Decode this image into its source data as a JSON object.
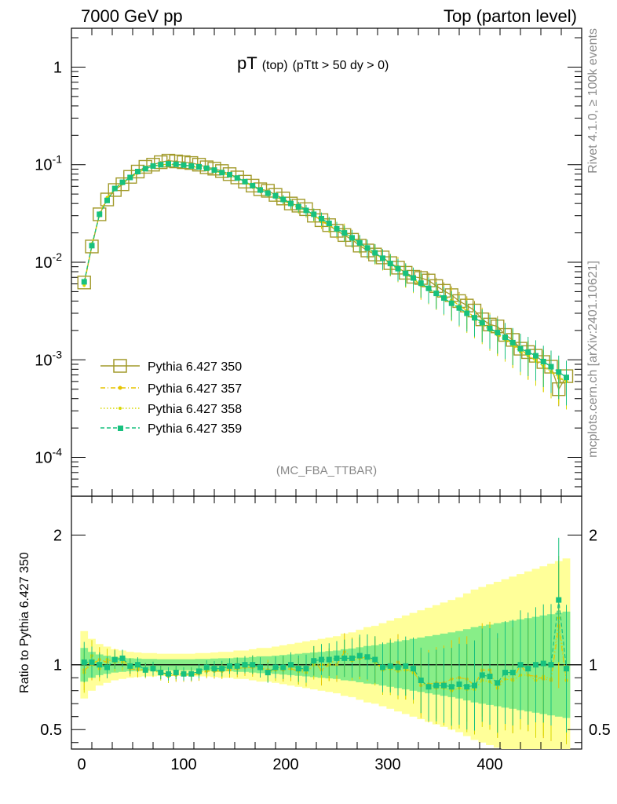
{
  "header": {
    "left": "7000 GeV pp",
    "right": "Top (parton level)"
  },
  "side_texts": {
    "rivet": "Rivet 4.1.0, ≥ 100k events",
    "mcplots": "mcplots.cern.ch [arXiv:2401.10621]"
  },
  "watermark": "(MC_FBA_TTBAR)",
  "title": {
    "main": "pT",
    "sub1": "(top)",
    "sub2": "(pTtt > 50 dy > 0)"
  },
  "colors": {
    "gen350": "#a29a2a",
    "gen357": "#e6c400",
    "gen358": "#d8d800",
    "gen359": "#17c17e",
    "band_yellow": "#ffff99",
    "band_green": "#88ee88"
  },
  "chart_data": [
    {
      "type": "line",
      "panel": "main",
      "yscale": "log",
      "xlim": [
        -10,
        490
      ],
      "ylim": [
        4e-05,
        2.5
      ],
      "x_ticks": [
        0,
        100,
        200,
        300,
        400
      ],
      "y_tick_labels": [
        "1",
        "10^-1",
        "10^-2",
        "10^-3",
        "10^-4"
      ],
      "y_tick_values": [
        1,
        0.1,
        0.01,
        0.001,
        0.0001
      ],
      "legend_position": "lower-left",
      "series": [
        {
          "name": "Pythia 6.427 350",
          "marker": "open-square",
          "style": "solid",
          "x": [
            2.5,
            10,
            17.5,
            25,
            32.5,
            40,
            47.5,
            55,
            62.5,
            70,
            77.5,
            85,
            92.5,
            100,
            107.5,
            115,
            122.5,
            130,
            137.5,
            145,
            152.5,
            160,
            167.5,
            175,
            182.5,
            190,
            197.5,
            205,
            212.5,
            220,
            227.5,
            235,
            242.5,
            250,
            257.5,
            265,
            272.5,
            280,
            287.5,
            295,
            302.5,
            310,
            317.5,
            325,
            332.5,
            340,
            347.5,
            355,
            362.5,
            370,
            377.5,
            385,
            392.5,
            400,
            407.5,
            415,
            422.5,
            430,
            437.5,
            445,
            452.5,
            460,
            467.5,
            475
          ],
          "y": [
            0.0062,
            0.0145,
            0.031,
            0.044,
            0.055,
            0.063,
            0.075,
            0.085,
            0.095,
            0.1,
            0.106,
            0.11,
            0.108,
            0.106,
            0.104,
            0.1,
            0.094,
            0.091,
            0.086,
            0.08,
            0.074,
            0.067,
            0.061,
            0.056,
            0.054,
            0.049,
            0.045,
            0.04,
            0.038,
            0.035,
            0.03,
            0.027,
            0.024,
            0.021,
            0.019,
            0.017,
            0.0148,
            0.0132,
            0.012,
            0.0112,
            0.0098,
            0.0088,
            0.0078,
            0.0071,
            0.0069,
            0.0065,
            0.0057,
            0.0051,
            0.0046,
            0.004,
            0.0036,
            0.0032,
            0.0026,
            0.0023,
            0.0022,
            0.0018,
            0.0016,
            0.0013,
            0.0012,
            0.0011,
            0.00095,
            0.00085,
            0.0005,
            0.00068
          ]
        },
        {
          "name": "Pythia 6.427 357",
          "marker": "star",
          "style": "dashdot",
          "x": [
            2.5,
            10,
            17.5,
            25,
            32.5,
            40,
            47.5,
            55,
            62.5,
            70,
            77.5,
            85,
            92.5,
            100,
            107.5,
            115,
            122.5,
            130,
            137.5,
            145,
            152.5,
            160,
            167.5,
            175,
            182.5,
            190,
            197.5,
            205,
            212.5,
            220,
            227.5,
            235,
            242.5,
            250,
            257.5,
            265,
            272.5,
            280,
            287.5,
            295,
            302.5,
            310,
            317.5,
            325,
            332.5,
            340,
            347.5,
            355,
            362.5,
            370,
            377.5,
            385,
            392.5,
            400,
            407.5,
            415,
            422.5,
            430,
            437.5,
            445,
            452.5,
            460,
            467.5,
            475
          ],
          "y": [
            0.006,
            0.0145,
            0.032,
            0.045,
            0.058,
            0.066,
            0.073,
            0.082,
            0.091,
            0.097,
            0.1,
            0.101,
            0.099,
            0.098,
            0.096,
            0.093,
            0.089,
            0.086,
            0.082,
            0.077,
            0.072,
            0.066,
            0.06,
            0.055,
            0.052,
            0.047,
            0.043,
            0.039,
            0.036,
            0.034,
            0.031,
            0.026,
            0.024,
            0.021,
            0.021,
            0.018,
            0.0155,
            0.014,
            0.0125,
            0.0108,
            0.0098,
            0.009,
            0.0075,
            0.0068,
            0.0058,
            0.0055,
            0.0049,
            0.0044,
            0.0041,
            0.0036,
            0.0032,
            0.0027,
            0.0025,
            0.0022,
            0.0018,
            0.0017,
            0.0014,
            0.0013,
            0.0011,
            0.001,
            0.00085,
            0.00075,
            0.00065,
            0.0006
          ]
        },
        {
          "name": "Pythia 6.427 358",
          "marker": "dot",
          "style": "dotted",
          "x": [
            2.5,
            10,
            17.5,
            25,
            32.5,
            40,
            47.5,
            55,
            62.5,
            70,
            77.5,
            85,
            92.5,
            100,
            107.5,
            115,
            122.5,
            130,
            137.5,
            145,
            152.5,
            160,
            167.5,
            175,
            182.5,
            190,
            197.5,
            205,
            212.5,
            220,
            227.5,
            235,
            242.5,
            250,
            257.5,
            265,
            272.5,
            280,
            287.5,
            295,
            302.5,
            310,
            317.5,
            325,
            332.5,
            340,
            347.5,
            355,
            362.5,
            370,
            377.5,
            385,
            392.5,
            400,
            407.5,
            415,
            422.5,
            430,
            437.5,
            445,
            452.5,
            460,
            467.5,
            475
          ],
          "y": [
            0.0058,
            0.0155,
            0.03,
            0.046,
            0.056,
            0.064,
            0.074,
            0.083,
            0.09,
            0.096,
            0.099,
            0.1,
            0.1,
            0.099,
            0.097,
            0.094,
            0.09,
            0.087,
            0.083,
            0.078,
            0.073,
            0.067,
            0.061,
            0.055,
            0.051,
            0.047,
            0.044,
            0.04,
            0.036,
            0.033,
            0.03,
            0.027,
            0.024,
            0.022,
            0.02,
            0.0175,
            0.0155,
            0.0138,
            0.0122,
            0.0108,
            0.0095,
            0.0084,
            0.0075,
            0.0067,
            0.006,
            0.0053,
            0.0047,
            0.0042,
            0.0037,
            0.0033,
            0.0029,
            0.0026,
            0.0023,
            0.002,
            0.0018,
            0.0016,
            0.0014,
            0.0012,
            0.0011,
            0.00097,
            0.00086,
            0.00076,
            0.00068,
            0.0006
          ]
        },
        {
          "name": "Pythia 6.427 359",
          "marker": "filled-square",
          "style": "dashed",
          "x": [
            2.5,
            10,
            17.5,
            25,
            32.5,
            40,
            47.5,
            55,
            62.5,
            70,
            77.5,
            85,
            92.5,
            100,
            107.5,
            115,
            122.5,
            130,
            137.5,
            145,
            152.5,
            160,
            167.5,
            175,
            182.5,
            190,
            197.5,
            205,
            212.5,
            220,
            227.5,
            235,
            242.5,
            250,
            257.5,
            265,
            272.5,
            280,
            287.5,
            295,
            302.5,
            310,
            317.5,
            325,
            332.5,
            340,
            347.5,
            355,
            362.5,
            370,
            377.5,
            385,
            392.5,
            400,
            407.5,
            415,
            422.5,
            430,
            437.5,
            445,
            452.5,
            460,
            467.5,
            475
          ],
          "y": [
            0.0063,
            0.0148,
            0.031,
            0.043,
            0.057,
            0.066,
            0.074,
            0.085,
            0.091,
            0.097,
            0.1,
            0.102,
            0.101,
            0.099,
            0.097,
            0.095,
            0.092,
            0.088,
            0.083,
            0.079,
            0.073,
            0.067,
            0.061,
            0.055,
            0.051,
            0.048,
            0.044,
            0.04,
            0.037,
            0.034,
            0.031,
            0.028,
            0.025,
            0.022,
            0.02,
            0.0178,
            0.0158,
            0.014,
            0.0125,
            0.011,
            0.0097,
            0.0086,
            0.0077,
            0.0069,
            0.0061,
            0.0054,
            0.0048,
            0.0043,
            0.0038,
            0.0034,
            0.003,
            0.0027,
            0.0024,
            0.0021,
            0.0019,
            0.0017,
            0.0015,
            0.0013,
            0.0012,
            0.0011,
            0.00096,
            0.00085,
            0.00075,
            0.00066
          ]
        }
      ]
    },
    {
      "type": "line",
      "panel": "ratio",
      "ylabel": "Ratio to Pythia 6.427 350",
      "ylim": [
        0.35,
        2.3
      ],
      "y_ticks": [
        0.5,
        1,
        2
      ],
      "x_ticks": [
        0,
        100,
        200,
        300,
        400
      ],
      "bands": {
        "yellow_half_width": [
          0.26,
          0.2,
          0.16,
          0.14,
          0.12,
          0.11,
          0.1,
          0.095,
          0.09,
          0.09,
          0.085,
          0.085,
          0.085,
          0.085,
          0.085,
          0.09,
          0.09,
          0.095,
          0.1,
          0.1,
          0.11,
          0.11,
          0.12,
          0.13,
          0.13,
          0.14,
          0.15,
          0.16,
          0.17,
          0.18,
          0.19,
          0.2,
          0.21,
          0.22,
          0.24,
          0.25,
          0.27,
          0.29,
          0.3,
          0.32,
          0.34,
          0.36,
          0.38,
          0.4,
          0.42,
          0.44,
          0.46,
          0.48,
          0.5,
          0.52,
          0.55,
          0.58,
          0.6,
          0.62,
          0.64,
          0.66,
          0.68,
          0.7,
          0.72,
          0.74,
          0.76,
          0.78,
          0.8,
          0.82
        ],
        "green_half_width": [
          0.13,
          0.1,
          0.08,
          0.07,
          0.06,
          0.055,
          0.05,
          0.048,
          0.045,
          0.045,
          0.043,
          0.043,
          0.043,
          0.043,
          0.043,
          0.045,
          0.045,
          0.048,
          0.05,
          0.05,
          0.055,
          0.055,
          0.06,
          0.065,
          0.065,
          0.07,
          0.075,
          0.08,
          0.085,
          0.09,
          0.095,
          0.1,
          0.105,
          0.11,
          0.12,
          0.125,
          0.135,
          0.145,
          0.15,
          0.16,
          0.17,
          0.18,
          0.19,
          0.2,
          0.21,
          0.22,
          0.23,
          0.24,
          0.25,
          0.26,
          0.275,
          0.29,
          0.3,
          0.31,
          0.32,
          0.33,
          0.34,
          0.35,
          0.36,
          0.37,
          0.38,
          0.39,
          0.4,
          0.41
        ]
      },
      "series": [
        {
          "name": "Pythia 6.427 357",
          "values": [
            0.96,
            1.0,
            1.04,
            1.02,
            1.05,
            1.05,
            0.97,
            0.96,
            0.96,
            0.97,
            0.94,
            0.92,
            0.92,
            0.92,
            0.92,
            0.93,
            0.95,
            0.95,
            0.95,
            0.96,
            0.97,
            0.98,
            0.98,
            0.98,
            0.96,
            0.96,
            0.96,
            0.97,
            0.95,
            0.97,
            1.03,
            0.96,
            1.0,
            1.0,
            1.1,
            1.06,
            1.05,
            1.06,
            1.04,
            0.96,
            1.0,
            1.02,
            0.96,
            0.96,
            0.84,
            0.85,
            0.86,
            0.86,
            0.89,
            0.9,
            0.89,
            0.84,
            0.96,
            0.96,
            0.82,
            0.94,
            0.88,
            1.0,
            0.92,
            0.91,
            0.89,
            0.88,
            1.3,
            0.88
          ]
        },
        {
          "name": "Pythia 6.427 358",
          "values": [
            0.94,
            1.07,
            0.97,
            1.04,
            1.02,
            1.02,
            0.99,
            0.98,
            0.95,
            0.96,
            0.93,
            0.91,
            0.93,
            0.93,
            0.93,
            0.94,
            0.96,
            0.96,
            0.96,
            0.98,
            0.99,
            1.0,
            1.0,
            0.98,
            0.94,
            0.96,
            0.98,
            1.0,
            0.95,
            0.94,
            1.0,
            1.0,
            1.0,
            1.05,
            1.05,
            1.03,
            1.05,
            1.05,
            1.02,
            0.96,
            0.97,
            0.95,
            0.96,
            0.94,
            0.87,
            0.82,
            0.82,
            0.82,
            0.8,
            0.82,
            0.81,
            0.81,
            0.88,
            0.87,
            0.82,
            0.89,
            0.88,
            0.92,
            0.92,
            0.88,
            0.91,
            0.89,
            1.36,
            0.88
          ]
        },
        {
          "name": "Pythia 6.427 359",
          "values": [
            1.02,
            1.02,
            1.0,
            0.98,
            1.04,
            1.05,
            0.99,
            1.0,
            0.96,
            0.97,
            0.94,
            0.93,
            0.94,
            0.93,
            0.93,
            0.95,
            0.98,
            0.97,
            0.97,
            0.99,
            0.99,
            1.0,
            1.0,
            0.98,
            0.94,
            0.98,
            0.98,
            1.0,
            0.97,
            0.97,
            1.03,
            1.04,
            1.04,
            1.05,
            1.05,
            1.05,
            1.07,
            1.06,
            1.04,
            0.98,
            0.99,
            0.98,
            0.99,
            0.97,
            0.88,
            0.83,
            0.84,
            0.84,
            0.83,
            0.85,
            0.83,
            0.84,
            0.92,
            0.91,
            0.86,
            0.94,
            0.94,
            1.0,
            0.97,
            1.0,
            1.01,
            1.0,
            1.5,
            0.97
          ]
        }
      ]
    }
  ]
}
